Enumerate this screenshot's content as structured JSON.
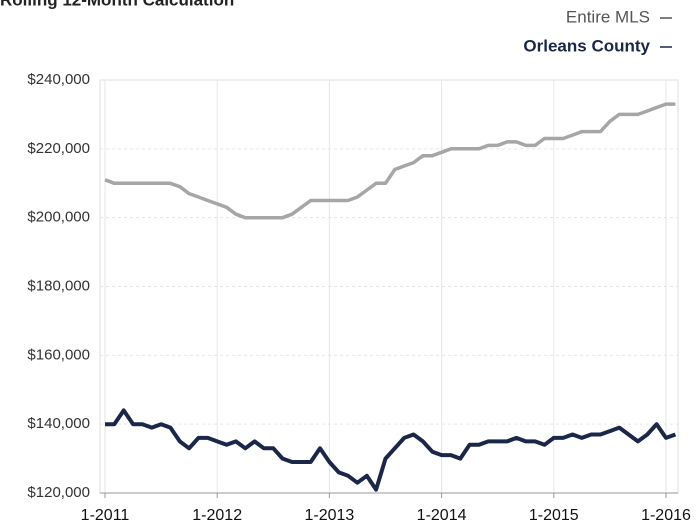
{
  "chart_data": {
    "type": "line",
    "title": "Rolling 12-Month Calculation",
    "categories": [
      "1-2011",
      null,
      null,
      null,
      null,
      null,
      null,
      null,
      null,
      null,
      null,
      null,
      "1-2012",
      null,
      null,
      null,
      null,
      null,
      null,
      null,
      null,
      null,
      null,
      null,
      "1-2013",
      null,
      null,
      null,
      null,
      null,
      null,
      null,
      null,
      null,
      null,
      null,
      "1-2014",
      null,
      null,
      null,
      null,
      null,
      null,
      null,
      null,
      null,
      null,
      null,
      "1-2015",
      null,
      null,
      null,
      null,
      null,
      null,
      null,
      null,
      null,
      null,
      null,
      "1-2016",
      null
    ],
    "series": [
      {
        "name": "Entire MLS",
        "color": "#a6a6a6",
        "values": [
          211000,
          210000,
          210000,
          210000,
          210000,
          210000,
          210000,
          210000,
          209000,
          207000,
          206000,
          205000,
          204000,
          203000,
          201000,
          200000,
          200000,
          200000,
          200000,
          200000,
          201000,
          203000,
          205000,
          205000,
          205000,
          205000,
          205000,
          206000,
          208000,
          210000,
          210000,
          214000,
          215000,
          216000,
          218000,
          218000,
          219000,
          220000,
          220000,
          220000,
          220000,
          221000,
          221000,
          222000,
          222000,
          221000,
          221000,
          223000,
          223000,
          223000,
          224000,
          225000,
          225000,
          225000,
          228000,
          230000,
          230000,
          230000,
          231000,
          232000,
          233000,
          233000
        ]
      },
      {
        "name": "Orleans County",
        "color": "#1b2748",
        "values": [
          140000,
          140000,
          144000,
          140000,
          140000,
          139000,
          140000,
          139000,
          135000,
          133000,
          136000,
          136000,
          135000,
          134000,
          135000,
          133000,
          135000,
          133000,
          133000,
          130000,
          129000,
          129000,
          129000,
          133000,
          129000,
          126000,
          125000,
          123000,
          125000,
          121000,
          130000,
          133000,
          136000,
          137000,
          135000,
          132000,
          131000,
          131000,
          130000,
          134000,
          134000,
          135000,
          135000,
          135000,
          136000,
          135000,
          135000,
          134000,
          136000,
          136000,
          137000,
          136000,
          137000,
          137000,
          138000,
          139000,
          137000,
          135000,
          137000,
          140000,
          136000,
          137000
        ]
      }
    ],
    "ylim": [
      120000,
      240000
    ],
    "yticks": [
      {
        "value": 120000,
        "label": "$120,000"
      },
      {
        "value": 140000,
        "label": "$140,000"
      },
      {
        "value": 160000,
        "label": "$160,000"
      },
      {
        "value": 180000,
        "label": "$180,000"
      },
      {
        "value": 200000,
        "label": "$200,000"
      },
      {
        "value": 220000,
        "label": "$220,000"
      },
      {
        "value": 240000,
        "label": "$240,000"
      }
    ],
    "grid": true
  }
}
